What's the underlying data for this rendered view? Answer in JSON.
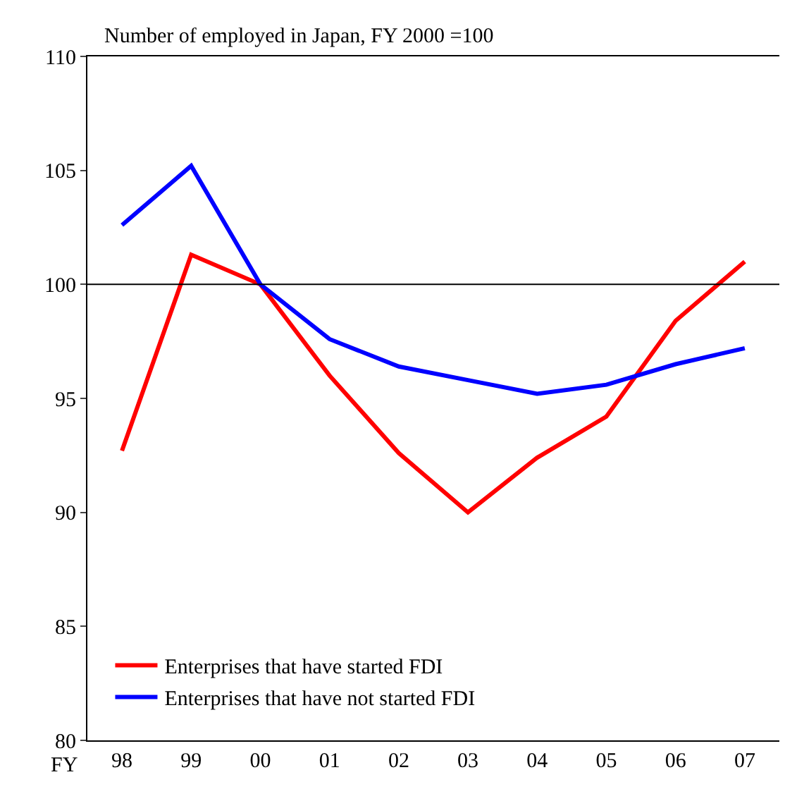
{
  "chart_data": {
    "type": "line",
    "title": "Number of employed in Japan, FY 2000 =100",
    "xlabel": "FY",
    "categories": [
      "98",
      "99",
      "00",
      "01",
      "02",
      "03",
      "04",
      "05",
      "06",
      "07"
    ],
    "series": [
      {
        "name": "Enterprises that have started FDI",
        "color": "#ff0000",
        "values": [
          92.7,
          101.3,
          100,
          96.0,
          92.6,
          90.0,
          92.4,
          94.2,
          98.4,
          101.0
        ]
      },
      {
        "name": "Enterprises that have not started FDI",
        "color": "#0000ff",
        "values": [
          102.6,
          105.2,
          100,
          97.6,
          96.4,
          95.8,
          95.2,
          95.6,
          96.5,
          97.2
        ]
      }
    ],
    "ylim": [
      80,
      110
    ],
    "yticks": [
      80,
      85,
      90,
      95,
      100,
      105,
      110
    ],
    "ref_lines": [
      {
        "axis": "y",
        "value": 100,
        "color": "#000000"
      }
    ],
    "legend": "bottom left",
    "marker": "none",
    "line_style": "solid"
  }
}
